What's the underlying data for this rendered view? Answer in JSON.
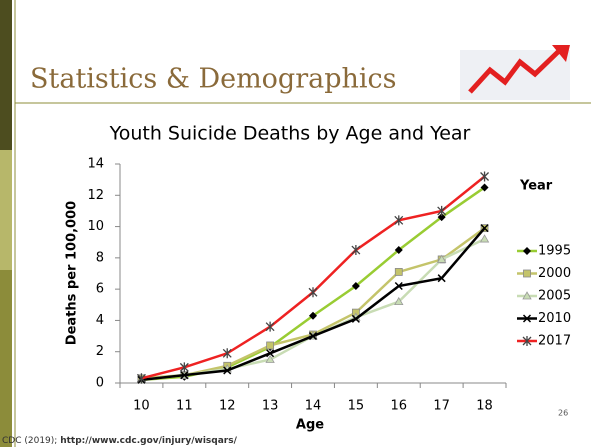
{
  "slide": {
    "title": "Statistics & Demographics",
    "page_number": "26",
    "source": "CDC (2019);",
    "url": "http://www.cdc.gov/injury/wisqars/"
  },
  "chart_data": {
    "type": "line",
    "title": "Youth Suicide Deaths by Age and Year",
    "x_label": "Age",
    "y_label": "Deaths per 100,000",
    "legend_title": "Year",
    "legend": "right",
    "categories": [
      10,
      11,
      12,
      13,
      14,
      15,
      16,
      17,
      18
    ],
    "ylim": [
      0,
      14
    ],
    "yticks": [
      0,
      2,
      4,
      6,
      8,
      10,
      12,
      14
    ],
    "grid": false,
    "series": [
      {
        "name": "1995",
        "color": "#99cc33",
        "marker": "diamond",
        "values": [
          0.2,
          0.4,
          1.0,
          2.3,
          4.3,
          6.2,
          8.5,
          10.6,
          12.5
        ]
      },
      {
        "name": "2000",
        "color": "#c4c46a",
        "marker": "square",
        "values": [
          0.3,
          0.5,
          1.1,
          2.4,
          3.1,
          4.5,
          7.1,
          7.9,
          9.9
        ]
      },
      {
        "name": "2005",
        "color": "#c8dcb4",
        "marker": "triangle",
        "values": [
          0.2,
          0.5,
          0.9,
          1.5,
          3.0,
          4.2,
          5.2,
          7.9,
          9.2
        ]
      },
      {
        "name": "2010",
        "color": "#000000",
        "marker": "x",
        "values": [
          0.2,
          0.5,
          0.8,
          1.9,
          3.0,
          4.1,
          6.2,
          6.7,
          9.9
        ]
      },
      {
        "name": "2017",
        "color": "#ee2222",
        "marker": "star",
        "values": [
          0.3,
          1.0,
          1.9,
          3.6,
          5.8,
          8.5,
          10.4,
          11.0,
          13.2
        ]
      }
    ]
  }
}
